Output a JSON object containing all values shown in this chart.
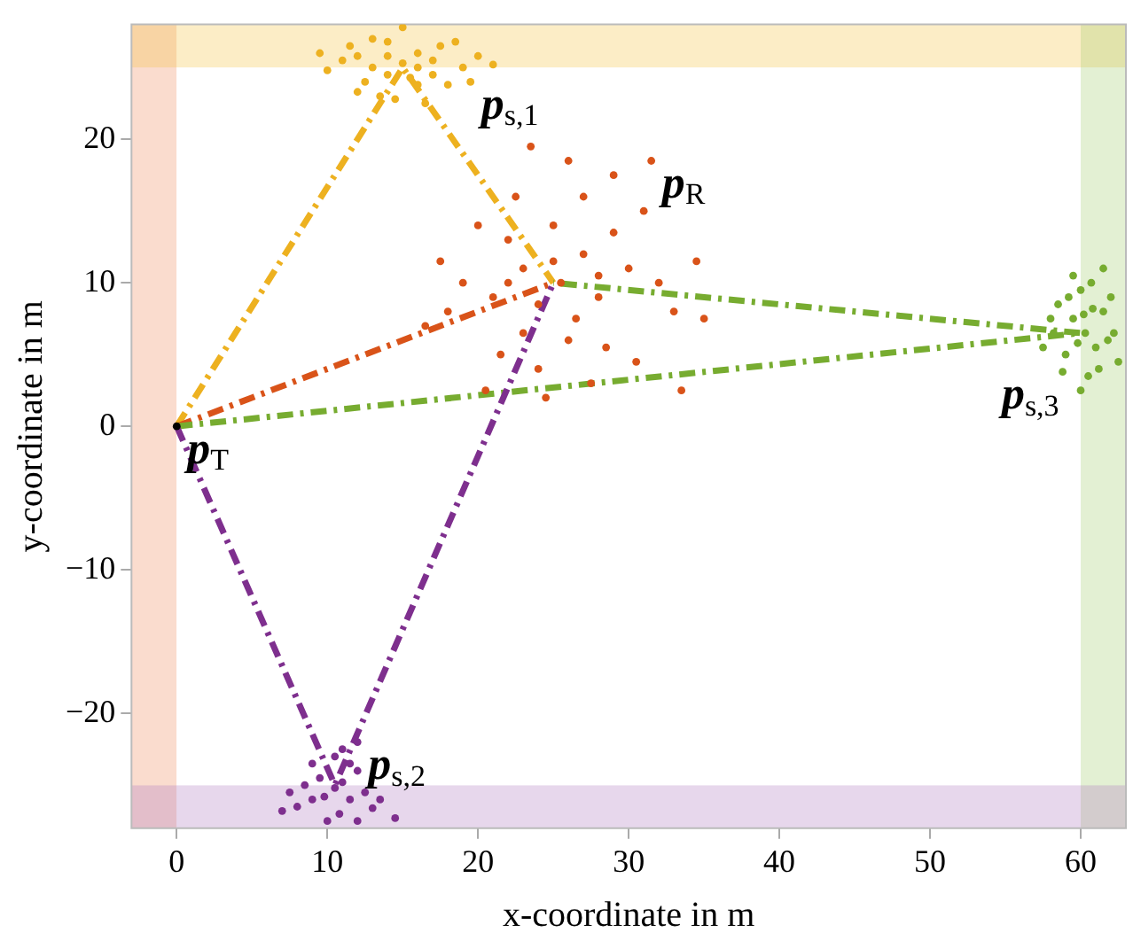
{
  "chart_data": {
    "type": "scatter",
    "xlabel": "x-coordinate in m",
    "ylabel": "y-coordinate in m",
    "xlim": [
      -3,
      63
    ],
    "ylim": [
      -28,
      28
    ],
    "xticks": [
      0,
      10,
      20,
      30,
      40,
      50,
      60
    ],
    "yticks": [
      {
        "value": -20,
        "label": "−20"
      },
      {
        "value": -10,
        "label": "−10"
      },
      0,
      10,
      20
    ],
    "legend": false,
    "bands": [
      {
        "axis": "x",
        "from": -3,
        "to": 0,
        "color": "#f08a5d"
      },
      {
        "axis": "y",
        "from": 25,
        "to": 28,
        "color": "#f5c342"
      },
      {
        "axis": "x",
        "from": 60,
        "to": 63,
        "color": "#a3cc6e"
      },
      {
        "axis": "y",
        "from": -28,
        "to": -25,
        "color": "#b07cc0"
      }
    ],
    "series": [
      {
        "type": "line",
        "color": "#edb120",
        "marker": "none",
        "line_style": "dashed",
        "x": [
          0,
          15,
          25
        ],
        "values": [
          0,
          25,
          10
        ]
      },
      {
        "type": "line",
        "color": "#d95319",
        "marker": "none",
        "line_style": "dashed",
        "x": [
          0,
          25
        ],
        "values": [
          0,
          10
        ]
      },
      {
        "type": "line",
        "color": "#77ac30",
        "marker": "none",
        "line_style": "dashed",
        "x": [
          0,
          60,
          25
        ],
        "values": [
          0,
          6.5,
          10
        ]
      },
      {
        "type": "line",
        "color": "#7e2f8e",
        "marker": "none",
        "line_style": "dashed",
        "x": [
          0,
          10.5,
          25
        ],
        "values": [
          0,
          -25,
          10
        ]
      },
      {
        "color": "#edb120",
        "marker": "circle",
        "x": [
          15,
          13,
          17,
          11,
          19,
          14,
          16,
          12.5,
          17.5,
          10,
          20,
          15,
          14.5,
          13,
          18,
          16,
          14,
          11.5,
          18.5,
          12,
          19.5,
          9.5,
          21,
          16.5,
          13.5,
          15.5,
          12,
          17,
          14,
          16
        ],
        "values": [
          25.3,
          25,
          25.5,
          25.5,
          25,
          26.8,
          23.8,
          24,
          26.5,
          24.8,
          25.8,
          27.8,
          22.8,
          27,
          23.8,
          26,
          24.5,
          26.5,
          26.8,
          23.3,
          24,
          26,
          25.2,
          22.5,
          23,
          24.3,
          25.8,
          24.5,
          25.8,
          25
        ]
      },
      {
        "color": "#d95319",
        "marker": "circle",
        "x": [
          25.5,
          23,
          28,
          21,
          30,
          25,
          26,
          19,
          32,
          24,
          27,
          22,
          29,
          23,
          28.5,
          18,
          33,
          26,
          20,
          31,
          24.5,
          30.5,
          17.5,
          34.5,
          21.5,
          27,
          24,
          26.5,
          22.5,
          29,
          35,
          16.5,
          25,
          27.5,
          31.5,
          20.5,
          33.5,
          23.5,
          28,
          22
        ],
        "values": [
          10,
          11,
          9,
          9,
          11,
          14,
          6,
          10,
          10,
          4,
          16,
          13,
          13.5,
          6.5,
          5.5,
          8,
          8,
          18.5,
          14,
          15,
          2,
          4.5,
          11.5,
          11.5,
          5,
          12,
          8.5,
          7.5,
          16,
          17.5,
          7.5,
          7,
          11.5,
          3,
          18.5,
          2.5,
          2.5,
          19.5,
          10.5,
          10
        ]
      },
      {
        "color": "#77ac30",
        "marker": "circle",
        "x": [
          60.3,
          59.5,
          61,
          59,
          61.5,
          60,
          60.5,
          58.2,
          62.2,
          59.5,
          61.2,
          58.5,
          62,
          60,
          61.5,
          58.8,
          57.5,
          62.5,
          60.8,
          59.8,
          60.2,
          61.8,
          59.2,
          58,
          60.7
        ],
        "values": [
          6.5,
          7.5,
          5.5,
          5,
          8,
          9.5,
          3.5,
          6.5,
          6.5,
          10.5,
          4,
          8.5,
          9,
          2.5,
          11,
          3.8,
          5.5,
          4.5,
          8.2,
          5.8,
          7.8,
          6,
          9,
          7.5,
          10
        ]
      },
      {
        "color": "#7e2f8e",
        "marker": "circle",
        "x": [
          10.5,
          9.5,
          11.5,
          9,
          12,
          10.5,
          10,
          12.5,
          8.5,
          11,
          13,
          8,
          12,
          9,
          13.5,
          7.5,
          10.8,
          11.5,
          9.8,
          11,
          7,
          14.5,
          12
        ],
        "values": [
          -25.2,
          -24.5,
          -26,
          -26,
          -24,
          -23,
          -27.5,
          -25.5,
          -25,
          -22.5,
          -26.6,
          -26.5,
          -27.5,
          -23.5,
          -26,
          -25.5,
          -27,
          -23.5,
          -25.8,
          -24.8,
          -26.8,
          -27.3,
          -22
        ]
      },
      {
        "color": "#000000",
        "marker": "circle",
        "x": [
          0
        ],
        "values": [
          0
        ]
      }
    ],
    "annotations": [
      {
        "text": "p$_{s,1}$",
        "x": 19.5,
        "y": 24
      },
      {
        "text": "p$_{R}$",
        "x": 31.5,
        "y": 18.5
      },
      {
        "text": "p$_{s,3}$",
        "x": 58.8,
        "y": 3.8
      },
      {
        "text": "p$_{T}$",
        "x": 0,
        "y": 0
      },
      {
        "text": "p$_{s,2}$",
        "x": 12,
        "y": -22
      }
    ]
  }
}
